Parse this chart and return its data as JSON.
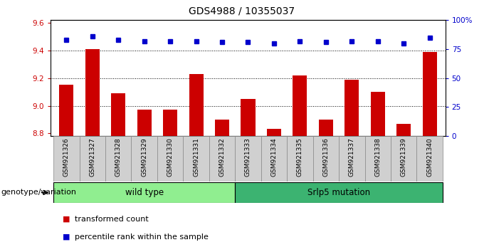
{
  "title": "GDS4988 / 10355037",
  "samples": [
    "GSM921326",
    "GSM921327",
    "GSM921328",
    "GSM921329",
    "GSM921330",
    "GSM921331",
    "GSM921332",
    "GSM921333",
    "GSM921334",
    "GSM921335",
    "GSM921336",
    "GSM921337",
    "GSM921338",
    "GSM921339",
    "GSM921340"
  ],
  "bar_values": [
    9.15,
    9.41,
    9.09,
    8.97,
    8.97,
    9.23,
    8.9,
    9.05,
    8.83,
    9.22,
    8.9,
    9.19,
    9.1,
    8.87,
    9.39
  ],
  "dot_values": [
    83,
    86,
    83,
    82,
    82,
    82,
    81,
    81,
    80,
    82,
    81,
    82,
    82,
    80,
    85
  ],
  "bar_color": "#cc0000",
  "dot_color": "#0000cc",
  "ylim_left": [
    8.78,
    9.62
  ],
  "ylim_right": [
    0,
    100
  ],
  "yticks_left": [
    8.8,
    9.0,
    9.2,
    9.4,
    9.6
  ],
  "yticks_right": [
    0,
    25,
    50,
    75,
    100
  ],
  "ytick_labels_right": [
    "0",
    "25",
    "50",
    "75",
    "100%"
  ],
  "grid_values": [
    9.0,
    9.2,
    9.4
  ],
  "groups": [
    {
      "label": "wild type",
      "start": 0,
      "end": 7,
      "color": "#90EE90"
    },
    {
      "label": "Srlp5 mutation",
      "start": 7,
      "end": 15,
      "color": "#3CB371"
    }
  ],
  "genotype_label": "genotype/variation",
  "legend_items": [
    {
      "label": "transformed count",
      "color": "#cc0000"
    },
    {
      "label": "percentile rank within the sample",
      "color": "#0000cc"
    }
  ],
  "bar_bottom": 8.78,
  "tick_color_left": "#cc0000",
  "tick_color_right": "#0000cc",
  "xtick_bg_color": "#d0d0d0",
  "xtick_border_color": "#888888"
}
